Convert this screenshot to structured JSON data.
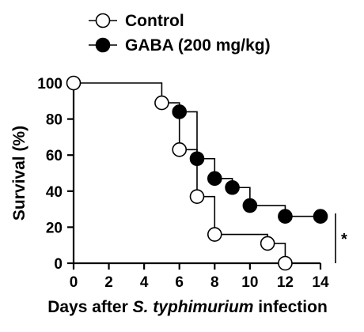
{
  "chart_data": {
    "type": "line",
    "step": true,
    "xlabel_parts": [
      "Days after ",
      "S. typhimurium",
      " infection"
    ],
    "ylabel": "Survival (%)",
    "xlim": [
      0,
      14
    ],
    "ylim": [
      0,
      100
    ],
    "xticks": [
      0,
      2,
      4,
      6,
      8,
      10,
      12,
      14
    ],
    "yticks": [
      0,
      20,
      40,
      60,
      80,
      100
    ],
    "legend_position": "top-left",
    "significance": "*",
    "series": [
      {
        "name": "Control",
        "marker": "open-circle",
        "color": "#000000",
        "x": [
          0,
          5,
          6,
          7,
          8,
          11,
          12
        ],
        "y": [
          100,
          89,
          63,
          37,
          16,
          11,
          0
        ]
      },
      {
        "name": "GABA (200 mg/kg)",
        "marker": "filled-circle",
        "color": "#000000",
        "x": [
          6,
          7,
          8,
          9,
          10,
          12,
          14
        ],
        "y": [
          84,
          58,
          47,
          42,
          32,
          26,
          26
        ]
      }
    ]
  }
}
